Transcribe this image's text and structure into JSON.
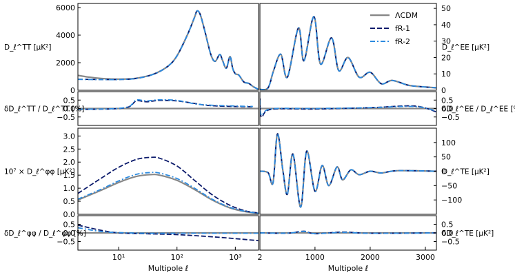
{
  "chart_data": {
    "type": "line",
    "series_styles": [
      {
        "name": "ΛCDM",
        "color": "#888888",
        "dash": "solid"
      },
      {
        "name": "fR-1",
        "color": "#0b1a6b",
        "dash": "dashed"
      },
      {
        "name": "fR-2",
        "color": "#2c8be0",
        "dash": "dashdot"
      }
    ],
    "legend": {
      "entries": [
        "ΛCDM",
        "fR-1",
        "fR-2"
      ],
      "location": "top-right of EE panel"
    },
    "xlabels": {
      "left": "Multipole ℓ",
      "right": "Multipole ℓ"
    },
    "panels": {
      "tt": {
        "ylabel": "D_ℓ^TT [μK²]",
        "ylim": [
          0,
          6300
        ],
        "yticks": [
          "0",
          "2000",
          "4000",
          "6000"
        ],
        "x_scale": "log",
        "xlim": [
          2,
          2500
        ],
        "series": {
          "ΛCDM": [
            [
              2,
              1080
            ],
            [
              3,
              960
            ],
            [
              5,
              860
            ],
            [
              10,
              810
            ],
            [
              20,
              870
            ],
            [
              40,
              1180
            ],
            [
              70,
              1750
            ],
            [
              100,
              2500
            ],
            [
              150,
              4000
            ],
            [
              200,
              5300
            ],
            [
              220,
              5750
            ],
            [
              250,
              5500
            ],
            [
              300,
              4300
            ],
            [
              380,
              2600
            ],
            [
              450,
              2100
            ],
            [
              540,
              2600
            ],
            [
              600,
              2200
            ],
            [
              700,
              1600
            ],
            [
              810,
              2450
            ],
            [
              900,
              1600
            ],
            [
              1000,
              1200
            ],
            [
              1150,
              1100
            ],
            [
              1400,
              600
            ],
            [
              1700,
              500
            ],
            [
              2000,
              280
            ],
            [
              2500,
              60
            ]
          ],
          "fR-1": [
            [
              2,
              800
            ],
            [
              3,
              790
            ],
            [
              5,
              780
            ],
            [
              10,
              780
            ],
            [
              20,
              860
            ],
            [
              40,
              1170
            ],
            [
              70,
              1740
            ],
            [
              100,
              2500
            ],
            [
              150,
              4000
            ],
            [
              200,
              5300
            ],
            [
              220,
              5760
            ],
            [
              250,
              5500
            ],
            [
              300,
              4300
            ],
            [
              380,
              2600
            ],
            [
              450,
              2100
            ],
            [
              540,
              2600
            ],
            [
              600,
              2200
            ],
            [
              700,
              1600
            ],
            [
              810,
              2450
            ],
            [
              900,
              1600
            ],
            [
              1000,
              1200
            ],
            [
              1150,
              1100
            ],
            [
              1400,
              600
            ],
            [
              1700,
              500
            ],
            [
              2000,
              280
            ],
            [
              2500,
              60
            ]
          ],
          "fR-2": [
            [
              2,
              790
            ],
            [
              3,
              780
            ],
            [
              5,
              775
            ],
            [
              10,
              775
            ],
            [
              20,
              855
            ],
            [
              40,
              1170
            ],
            [
              70,
              1745
            ],
            [
              100,
              2500
            ],
            [
              150,
              4000
            ],
            [
              200,
              5300
            ],
            [
              220,
              5760
            ],
            [
              250,
              5500
            ],
            [
              300,
              4300
            ],
            [
              380,
              2600
            ],
            [
              450,
              2100
            ],
            [
              540,
              2600
            ],
            [
              600,
              2200
            ],
            [
              700,
              1600
            ],
            [
              810,
              2450
            ],
            [
              900,
              1600
            ],
            [
              1000,
              1200
            ],
            [
              1150,
              1100
            ],
            [
              1400,
              600
            ],
            [
              1700,
              500
            ],
            [
              2000,
              280
            ],
            [
              2500,
              60
            ]
          ]
        }
      },
      "tt_ratio": {
        "ylabel": "δD_ℓ^TT / D_ℓ^TT [%]",
        "ylim": [
          -1.0,
          1.0
        ],
        "yticks": [
          "0.5",
          "0.0",
          "−0.5"
        ],
        "x_scale": "log",
        "xlim": [
          2,
          2500
        ],
        "series": {
          "ΛCDM": [
            [
              2,
              0.0
            ],
            [
              2500,
              0.0
            ]
          ],
          "fR-1": [
            [
              2,
              -0.05
            ],
            [
              8,
              -0.02
            ],
            [
              15,
              0.1
            ],
            [
              20,
              0.45
            ],
            [
              30,
              0.4
            ],
            [
              50,
              0.48
            ],
            [
              100,
              0.45
            ],
            [
              200,
              0.3
            ],
            [
              300,
              0.2
            ],
            [
              500,
              0.15
            ],
            [
              1000,
              0.12
            ],
            [
              2000,
              0.1
            ]
          ],
          "fR-2": [
            [
              2,
              -0.04
            ],
            [
              8,
              -0.01
            ],
            [
              15,
              0.12
            ],
            [
              20,
              0.5
            ],
            [
              30,
              0.45
            ],
            [
              50,
              0.52
            ],
            [
              100,
              0.48
            ],
            [
              200,
              0.28
            ],
            [
              300,
              0.22
            ],
            [
              500,
              0.18
            ],
            [
              1000,
              0.15
            ],
            [
              2000,
              0.12
            ]
          ]
        }
      },
      "ee": {
        "ylabel": "D_ℓ^EE [μK²]",
        "ylim": [
          0,
          53
        ],
        "yticks": [
          "0",
          "10",
          "20",
          "30",
          "40",
          "50"
        ],
        "x_scale": "linear",
        "xlim": [
          2,
          3200
        ],
        "series": {
          "ΛCDM": [
            [
              2,
              0.5
            ],
            [
              150,
              1.5
            ],
            [
              250,
              12
            ],
            [
              380,
              22
            ],
            [
              500,
              8
            ],
            [
              700,
              38
            ],
            [
              800,
              18
            ],
            [
              980,
              45
            ],
            [
              1100,
              16
            ],
            [
              1300,
              32
            ],
            [
              1430,
              12
            ],
            [
              1600,
              20
            ],
            [
              1800,
              8
            ],
            [
              2000,
              11
            ],
            [
              2200,
              4
            ],
            [
              2400,
              6
            ],
            [
              2700,
              3
            ],
            [
              3000,
              2
            ],
            [
              3200,
              1.5
            ]
          ]
        }
      },
      "ee_ratio": {
        "ylabel": "δD_ℓ^EE / D_ℓ^EE [%]",
        "ylim": [
          -1.0,
          1.0
        ],
        "yticks": [
          "0.5",
          "0.0",
          "−0.5"
        ],
        "x_scale": "linear",
        "xlim": [
          2,
          3200
        ],
        "series": {
          "ΛCDM": [
            [
              2,
              0.0
            ],
            [
              3200,
              0.0
            ]
          ],
          "fR-1": [
            [
              2,
              0.6
            ],
            [
              30,
              -0.5
            ],
            [
              200,
              -0.05
            ],
            [
              1000,
              -0.03
            ],
            [
              2000,
              0.05
            ],
            [
              2800,
              0.15
            ],
            [
              3200,
              -0.2
            ]
          ],
          "fR-2": [
            [
              2,
              0.5
            ],
            [
              30,
              -0.4
            ],
            [
              200,
              -0.02
            ],
            [
              1000,
              0.0
            ],
            [
              2000,
              0.05
            ],
            [
              2800,
              0.12
            ],
            [
              3200,
              -0.15
            ]
          ]
        }
      },
      "pp": {
        "ylabel": "10⁷ × D_ℓ^φφ [μK²]",
        "ylim": [
          0,
          3.3
        ],
        "yticks": [
          "0.0",
          "0.5",
          "1.0",
          "1.5",
          "2.0",
          "2.5",
          "3.0"
        ],
        "x_scale": "log",
        "xlim": [
          2,
          2500
        ],
        "series": {
          "ΛCDM": [
            [
              2,
              0.55
            ],
            [
              5,
              0.92
            ],
            [
              10,
              1.22
            ],
            [
              20,
              1.45
            ],
            [
              35,
              1.52
            ],
            [
              50,
              1.5
            ],
            [
              100,
              1.3
            ],
            [
              200,
              0.95
            ],
            [
              400,
              0.55
            ],
            [
              800,
              0.25
            ],
            [
              1500,
              0.1
            ],
            [
              2500,
              0.04
            ]
          ],
          "fR-1": [
            [
              2,
              0.8
            ],
            [
              5,
              1.38
            ],
            [
              10,
              1.8
            ],
            [
              20,
              2.1
            ],
            [
              35,
              2.18
            ],
            [
              50,
              2.15
            ],
            [
              100,
              1.85
            ],
            [
              200,
              1.3
            ],
            [
              400,
              0.75
            ],
            [
              800,
              0.35
            ],
            [
              1500,
              0.13
            ],
            [
              2500,
              0.05
            ]
          ],
          "fR-2": [
            [
              2,
              0.58
            ],
            [
              5,
              0.96
            ],
            [
              10,
              1.28
            ],
            [
              20,
              1.53
            ],
            [
              35,
              1.6
            ],
            [
              50,
              1.58
            ],
            [
              100,
              1.37
            ],
            [
              200,
              1.0
            ],
            [
              400,
              0.58
            ],
            [
              800,
              0.27
            ],
            [
              1500,
              0.11
            ],
            [
              2500,
              0.04
            ]
          ]
        }
      },
      "pp_ratio": {
        "ylabel": "δD_ℓ^φφ / D_ℓ^φφ [%]",
        "ylim": [
          -1.0,
          1.0
        ],
        "yticks": [
          "0.5",
          "0.0",
          "−0.5"
        ],
        "x_scale": "log",
        "xlim": [
          2,
          2500
        ],
        "series": {
          "ΛCDM": [
            [
              2,
              0.0
            ],
            [
              2500,
              0.0
            ]
          ],
          "fR-1": [
            [
              2,
              0.45
            ],
            [
              5,
              0.15
            ],
            [
              10,
              0.0
            ],
            [
              30,
              -0.05
            ],
            [
              100,
              -0.1
            ],
            [
              500,
              -0.25
            ],
            [
              2500,
              -0.45
            ]
          ],
          "fR-2": [
            [
              2,
              0.3
            ],
            [
              5,
              0.08
            ],
            [
              10,
              0.02
            ],
            [
              30,
              -0.02
            ],
            [
              100,
              -0.02
            ],
            [
              500,
              -0.02
            ],
            [
              2500,
              -0.02
            ]
          ]
        }
      },
      "te": {
        "ylabel": "D_ℓ^TE [μK²]",
        "ylim": [
          -150,
          150
        ],
        "yticks": [
          "100",
          "50",
          "0",
          "−50",
          "−100"
        ],
        "x_scale": "linear",
        "xlim": [
          2,
          3200
        ],
        "series": {
          "ΛCDM": [
            [
              2,
              0
            ],
            [
              150,
              -5
            ],
            [
              240,
              -40
            ],
            [
              320,
              130
            ],
            [
              420,
              0
            ],
            [
              500,
              -80
            ],
            [
              600,
              60
            ],
            [
              740,
              -125
            ],
            [
              850,
              70
            ],
            [
              1000,
              -70
            ],
            [
              1130,
              20
            ],
            [
              1250,
              -50
            ],
            [
              1400,
              15
            ],
            [
              1500,
              -30
            ],
            [
              1650,
              5
            ],
            [
              1800,
              -12
            ],
            [
              2000,
              0
            ],
            [
              2200,
              -6
            ],
            [
              2500,
              2
            ],
            [
              3200,
              0
            ]
          ]
        }
      },
      "te_ratio": {
        "ylabel": "δD_ℓ^TE [μK²]",
        "ylim": [
          -1.0,
          1.0
        ],
        "yticks": [
          "0.5",
          "0.0",
          "−0.5"
        ],
        "x_scale": "linear",
        "xlim": [
          2,
          3200
        ],
        "series": {
          "ΛCDM": [
            [
              2,
              0.0
            ],
            [
              3200,
              0.0
            ]
          ],
          "fR-1": [
            [
              2,
              0.0
            ],
            [
              500,
              -0.02
            ],
            [
              800,
              0.1
            ],
            [
              1000,
              -0.05
            ],
            [
              1500,
              0.05
            ],
            [
              2000,
              -0.02
            ],
            [
              3200,
              0.0
            ]
          ],
          "fR-2": [
            [
              2,
              0.0
            ],
            [
              500,
              -0.01
            ],
            [
              800,
              0.08
            ],
            [
              1000,
              -0.04
            ],
            [
              1500,
              0.03
            ],
            [
              2000,
              -0.02
            ],
            [
              3200,
              0.0
            ]
          ]
        }
      }
    },
    "x_ticks": {
      "left": [
        "10¹",
        "10²",
        "10³"
      ],
      "right": [
        "2",
        "1000",
        "2000",
        "3000"
      ]
    }
  }
}
